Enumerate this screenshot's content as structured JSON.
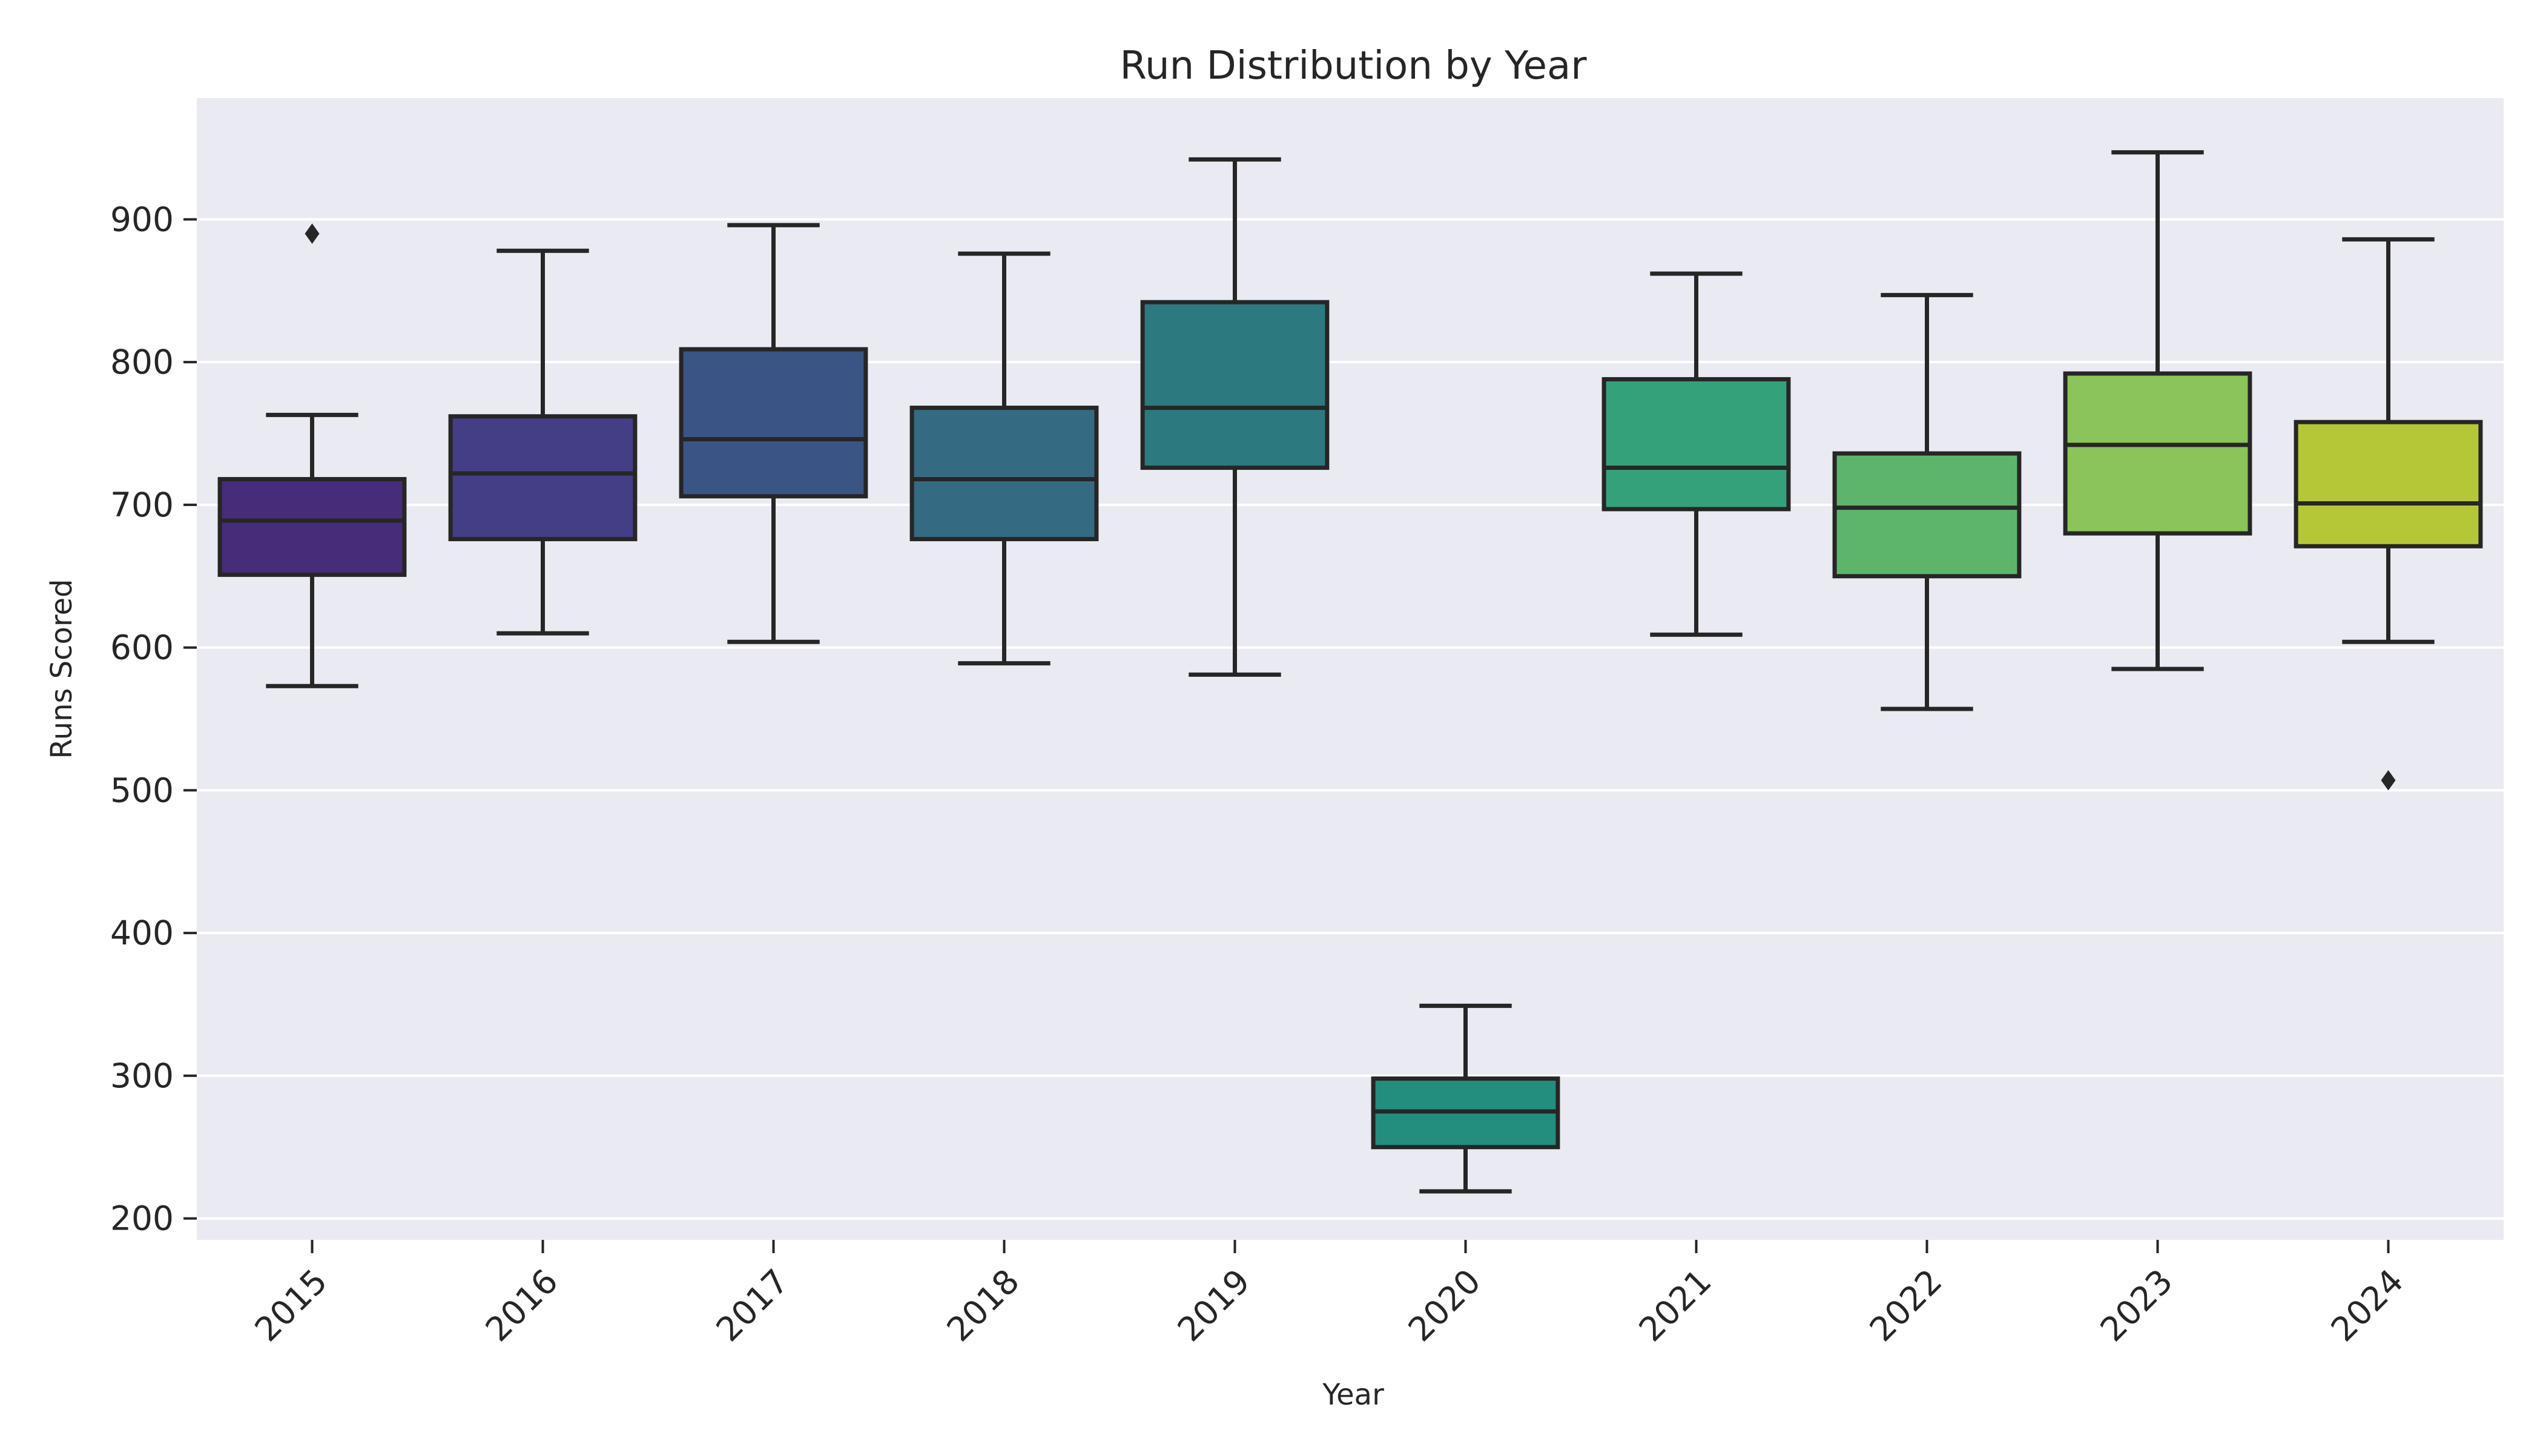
{
  "chart_data": {
    "type": "box",
    "title": "Run Distribution by Year",
    "xlabel": "Year",
    "ylabel": "Runs Scored",
    "ylim": [
      185,
      985
    ],
    "yticks": [
      200,
      300,
      400,
      500,
      600,
      700,
      800,
      900
    ],
    "grid": true,
    "legend": "none",
    "categories": [
      "2015",
      "2016",
      "2017",
      "2018",
      "2019",
      "2020",
      "2021",
      "2022",
      "2023",
      "2024"
    ],
    "boxes": [
      {
        "category": "2015",
        "whisker_low": 573,
        "q1": 651,
        "median": 689,
        "q3": 718,
        "whisker_high": 763,
        "outliers": [
          890
        ],
        "color": "#472C7A"
      },
      {
        "category": "2016",
        "whisker_low": 610,
        "q1": 676,
        "median": 722,
        "q3": 762,
        "whisker_high": 878,
        "outliers": [],
        "color": "#433E85"
      },
      {
        "category": "2017",
        "whisker_low": 604,
        "q1": 706,
        "median": 746,
        "q3": 809,
        "whisker_high": 896,
        "outliers": [],
        "color": "#3B5486"
      },
      {
        "category": "2018",
        "whisker_low": 589,
        "q1": 676,
        "median": 718,
        "q3": 768,
        "whisker_high": 876,
        "outliers": [],
        "color": "#356A83"
      },
      {
        "category": "2019",
        "whisker_low": 581,
        "q1": 726,
        "median": 768,
        "q3": 842,
        "whisker_high": 942,
        "outliers": [],
        "color": "#2C7A7F"
      },
      {
        "category": "2020",
        "whisker_low": 219,
        "q1": 250,
        "median": 275,
        "q3": 298,
        "whisker_high": 349,
        "outliers": [],
        "color": "#238E7E"
      },
      {
        "category": "2021",
        "whisker_low": 609,
        "q1": 697,
        "median": 726,
        "q3": 788,
        "whisker_high": 862,
        "outliers": [],
        "color": "#35A17B"
      },
      {
        "category": "2022",
        "whisker_low": 557,
        "q1": 650,
        "median": 698,
        "q3": 736,
        "whisker_high": 847,
        "outliers": [],
        "color": "#5DB56C"
      },
      {
        "category": "2023",
        "whisker_low": 585,
        "q1": 680,
        "median": 742,
        "q3": 792,
        "whisker_high": 947,
        "outliers": [],
        "color": "#8BC45A"
      },
      {
        "category": "2024",
        "whisker_low": 604,
        "q1": 671,
        "median": 701,
        "q3": 758,
        "whisker_high": 886,
        "outliers": [
          507
        ],
        "color": "#B5C736"
      }
    ],
    "colors": {
      "plot_background": "#EAEAF2",
      "line": "#262626",
      "grid": "#FFFFFF"
    }
  }
}
